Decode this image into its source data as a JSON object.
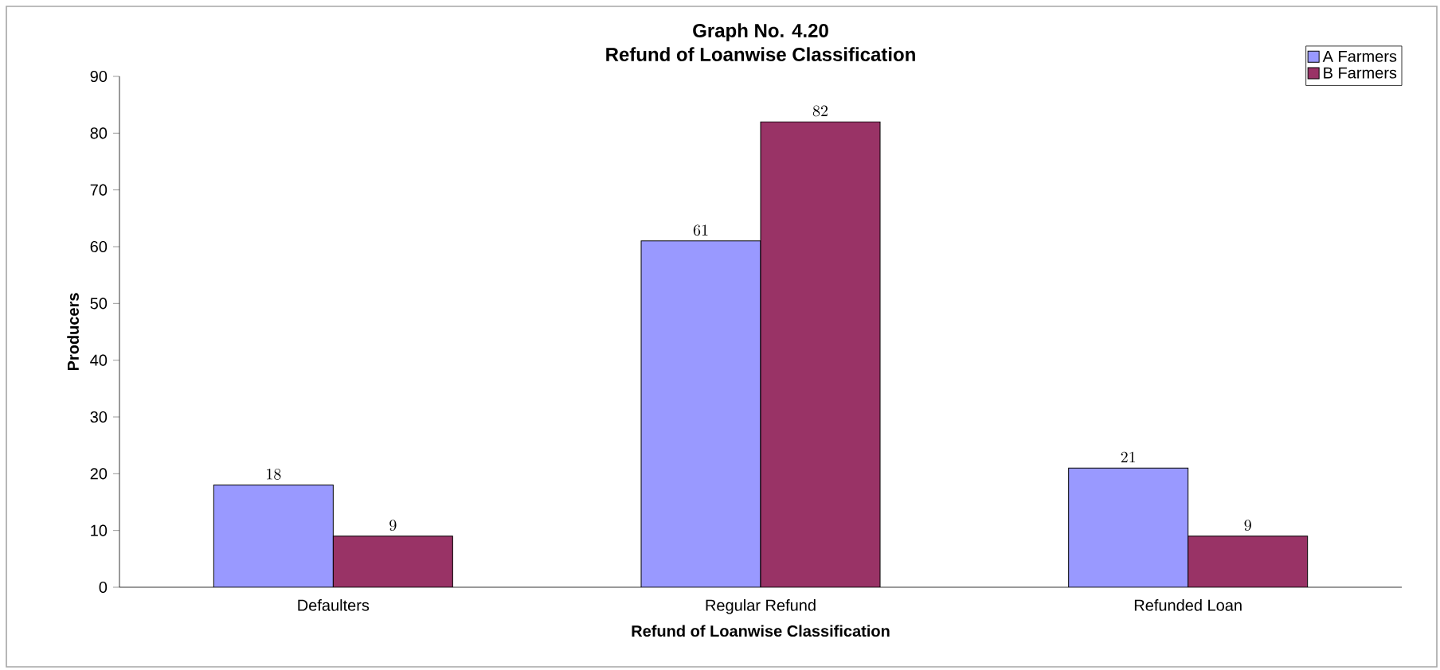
{
  "chart_data": {
    "type": "bar",
    "title": "Graph No. 4.20",
    "subtitle": "Refund of Loanwise Classification",
    "xlabel": "Refund of Loanwise Classification",
    "ylabel": "Producers",
    "categories": [
      "Defaulters",
      "Regular Refund",
      "Refunded Loan"
    ],
    "series": [
      {
        "name": "A Farmers",
        "color": "#9999ff",
        "values": [
          18,
          61,
          21
        ]
      },
      {
        "name": "B Farmers",
        "color": "#993366",
        "values": [
          9,
          82,
          9
        ]
      }
    ],
    "ylim": [
      0,
      90
    ],
    "yticks": [
      0,
      10,
      20,
      30,
      40,
      50,
      60,
      70,
      80,
      90
    ],
    "data_labels": true,
    "legend": "top right"
  }
}
